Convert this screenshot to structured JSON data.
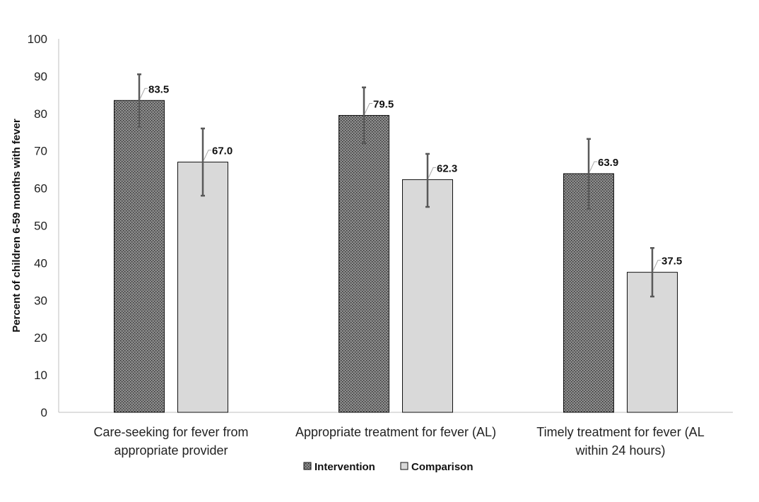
{
  "chart_data": {
    "type": "bar",
    "title": "",
    "ylabel": "Percent of children 6-59 months with fever",
    "xlabel": "",
    "ylim": [
      0,
      100
    ],
    "yticks": [
      0,
      10,
      20,
      30,
      40,
      50,
      60,
      70,
      80,
      90,
      100
    ],
    "categories": [
      [
        "Care-seeking for fever from",
        "appropriate provider"
      ],
      [
        "Appropriate treatment for fever (AL)"
      ],
      [
        "Timely treatment for fever (AL",
        "within 24 hours)"
      ]
    ],
    "series": [
      {
        "name": "Intervention",
        "values": [
          83.5,
          79.5,
          63.9
        ],
        "labels": [
          "83.5",
          "79.5",
          "63.9"
        ],
        "error_low": [
          76.5,
          72.0,
          54.5
        ],
        "error_high": [
          90.5,
          87.0,
          73.2
        ],
        "fill": "pattern-dark"
      },
      {
        "name": "Comparison",
        "values": [
          67.0,
          62.3,
          37.5
        ],
        "labels": [
          "67.0",
          "62.3",
          "37.5"
        ],
        "error_low": [
          58.0,
          55.0,
          31.0
        ],
        "error_high": [
          76.0,
          69.2,
          44.0
        ],
        "fill": "#d9d9d9"
      }
    ],
    "legend_position": "bottom",
    "grid": false,
    "colors": {
      "bar_outline": "#111111",
      "error_bar": "#595959",
      "axis": "#bfbfbf",
      "comparison_fill": "#d9d9d9"
    }
  }
}
